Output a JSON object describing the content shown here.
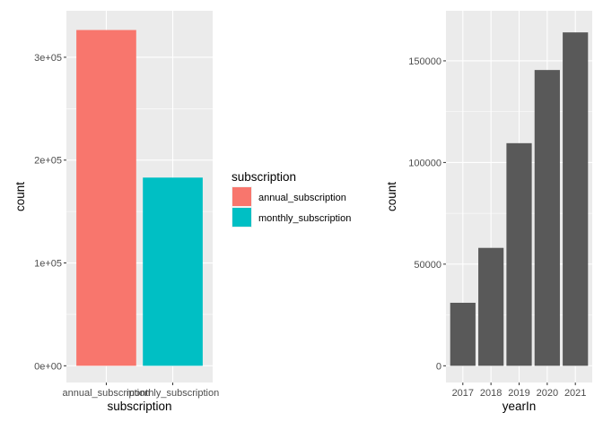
{
  "chart_data": [
    {
      "type": "bar",
      "xlabel": "subscription",
      "ylabel": "count",
      "categories": [
        "annual_subscription",
        "monthly_subscription"
      ],
      "values": [
        326500,
        183000
      ],
      "ylim": [
        0,
        340000
      ],
      "yticks": [
        0,
        100000,
        200000,
        300000
      ],
      "ytick_labels": [
        "0e+00",
        "1e+05",
        "2e+05",
        "3e+05"
      ],
      "grid": true,
      "colors": [
        "#F8766D",
        "#00BFC4"
      ],
      "legend": {
        "title": "subscription",
        "position": "right",
        "entries": [
          "annual_subscription",
          "monthly_subscription"
        ]
      }
    },
    {
      "type": "bar",
      "xlabel": "yearIn",
      "ylabel": "count",
      "categories": [
        "2017",
        "2018",
        "2019",
        "2020",
        "2021"
      ],
      "values": [
        31000,
        58000,
        109500,
        145500,
        164000
      ],
      "ylim": [
        0,
        172000
      ],
      "yticks": [
        0,
        50000,
        100000,
        150000
      ],
      "ytick_labels": [
        "0",
        "50000",
        "100000",
        "150000"
      ],
      "grid": true,
      "colors": [
        "#595959"
      ]
    }
  ]
}
